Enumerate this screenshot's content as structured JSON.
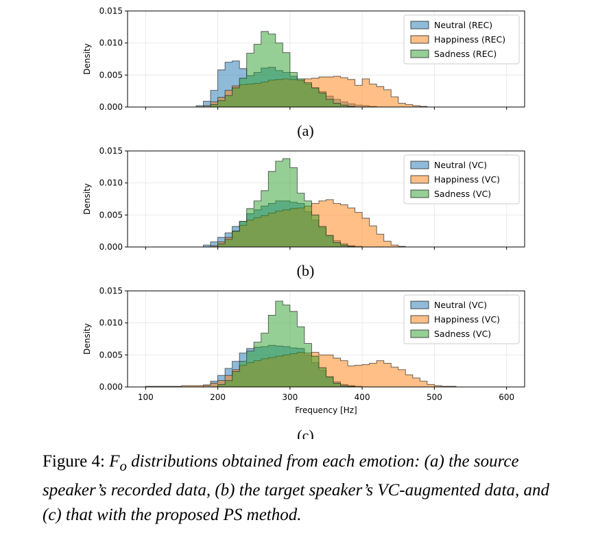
{
  "chart_data": [
    {
      "type": "histogram",
      "panel_label": "(a)",
      "xlabel": "",
      "ylabel": "Density",
      "xlim": [
        75,
        625
      ],
      "ylim": [
        0,
        0.015
      ],
      "xticks": [
        100,
        200,
        300,
        400,
        500,
        600
      ],
      "yticks": [
        "0.000",
        "0.005",
        "0.010",
        "0.015"
      ],
      "show_xticklabels": false,
      "grid": true,
      "legend_position": "upper-right",
      "bin_edges": [
        100,
        110,
        120,
        130,
        140,
        150,
        160,
        170,
        180,
        190,
        200,
        210,
        220,
        230,
        240,
        250,
        260,
        270,
        280,
        290,
        300,
        310,
        320,
        330,
        340,
        350,
        360,
        370,
        380,
        390,
        400,
        410,
        420,
        430,
        440,
        450,
        460,
        470,
        480,
        490,
        500,
        510,
        520,
        530,
        540,
        550,
        560,
        570,
        580,
        590,
        600
      ],
      "series": [
        {
          "name": "Neutral (REC)",
          "color": "#1f77b4",
          "values": [
            0,
            0,
            0,
            0,
            0,
            0,
            0,
            0.0002,
            0.0009,
            0.0026,
            0.0058,
            0.007,
            0.0072,
            0.006,
            0.0049,
            0.0054,
            0.0061,
            0.0062,
            0.0057,
            0.0054,
            0.0048,
            0.0042,
            0.0036,
            0.003,
            0.0024,
            0.0017,
            0.0012,
            0.0008,
            0.0005,
            0.0003,
            0.0002,
            0.0001,
            0,
            0,
            0,
            0,
            0,
            0,
            0,
            0,
            0,
            0,
            0,
            0,
            0,
            0,
            0,
            0,
            0,
            0
          ]
        },
        {
          "name": "Happiness (REC)",
          "color": "#ff7f0e",
          "values": [
            0,
            0,
            0,
            0,
            0,
            0,
            0,
            0,
            0.0002,
            0.0008,
            0.0015,
            0.0026,
            0.0033,
            0.0035,
            0.0036,
            0.0037,
            0.0039,
            0.0042,
            0.0043,
            0.0044,
            0.0043,
            0.0042,
            0.0044,
            0.0045,
            0.0047,
            0.0047,
            0.0048,
            0.0046,
            0.0043,
            0.0034,
            0.0044,
            0.0036,
            0.0032,
            0.0027,
            0.0016,
            0.0006,
            0.0004,
            0.0002,
            0.0001,
            0,
            0,
            0,
            0,
            0,
            0,
            0,
            0,
            0,
            0,
            0
          ]
        },
        {
          "name": "Sadness (REC)",
          "color": "#2ca02c",
          "values": [
            0,
            0,
            0,
            0,
            0,
            0,
            0,
            0,
            0,
            0.0004,
            0.001,
            0.0018,
            0.003,
            0.0045,
            0.0084,
            0.0098,
            0.0118,
            0.0114,
            0.01,
            0.0085,
            0.0054,
            0.0044,
            0.0038,
            0.003,
            0.0022,
            0.0012,
            0.0006,
            0.0003,
            0.0001,
            0,
            0,
            0,
            0,
            0,
            0,
            0,
            0,
            0,
            0,
            0,
            0,
            0,
            0,
            0,
            0,
            0,
            0,
            0,
            0,
            0
          ]
        }
      ]
    },
    {
      "type": "histogram",
      "panel_label": "(b)",
      "xlabel": "",
      "ylabel": "Density",
      "xlim": [
        75,
        625
      ],
      "ylim": [
        0,
        0.015
      ],
      "xticks": [
        100,
        200,
        300,
        400,
        500,
        600
      ],
      "yticks": [
        "0.000",
        "0.005",
        "0.010",
        "0.015"
      ],
      "show_xticklabels": false,
      "grid": true,
      "legend_position": "upper-right",
      "bin_edges": [
        100,
        110,
        120,
        130,
        140,
        150,
        160,
        170,
        180,
        190,
        200,
        210,
        220,
        230,
        240,
        250,
        260,
        270,
        280,
        290,
        300,
        310,
        320,
        330,
        340,
        350,
        360,
        370,
        380,
        390,
        400,
        410,
        420,
        430,
        440,
        450,
        460,
        470,
        480,
        490,
        500,
        510,
        520,
        530,
        540,
        550,
        560,
        570,
        580,
        590,
        600
      ],
      "series": [
        {
          "name": "Neutral (VC)",
          "color": "#1f77b4",
          "values": [
            0,
            0,
            0,
            0,
            0,
            0,
            0,
            0,
            0.0003,
            0.0008,
            0.0015,
            0.0022,
            0.0032,
            0.004,
            0.0052,
            0.0058,
            0.0064,
            0.0068,
            0.0072,
            0.0072,
            0.007,
            0.0068,
            0.0055,
            0.0042,
            0.003,
            0.0018,
            0.001,
            0.0005,
            0.0002,
            0.0001,
            0,
            0,
            0,
            0,
            0,
            0,
            0,
            0,
            0,
            0,
            0,
            0,
            0,
            0,
            0,
            0,
            0,
            0,
            0,
            0
          ]
        },
        {
          "name": "Happiness (VC)",
          "color": "#ff7f0e",
          "values": [
            0,
            0,
            0,
            0,
            0,
            0,
            0,
            0,
            0,
            0.0002,
            0.0008,
            0.0015,
            0.0024,
            0.0034,
            0.0042,
            0.0046,
            0.0049,
            0.0053,
            0.0056,
            0.0058,
            0.006,
            0.0061,
            0.0064,
            0.0068,
            0.0072,
            0.0074,
            0.0068,
            0.0066,
            0.0061,
            0.0054,
            0.0045,
            0.0033,
            0.002,
            0.0009,
            0.0003,
            0.0001,
            0,
            0,
            0,
            0,
            0,
            0,
            0,
            0,
            0,
            0,
            0,
            0,
            0,
            0
          ]
        },
        {
          "name": "Sadness (VC)",
          "color": "#2ca02c",
          "values": [
            0,
            0,
            0,
            0,
            0,
            0,
            0,
            0,
            0,
            0,
            0.0005,
            0.0012,
            0.0025,
            0.004,
            0.006,
            0.0072,
            0.0088,
            0.0118,
            0.0134,
            0.0138,
            0.0124,
            0.0084,
            0.0072,
            0.005,
            0.0032,
            0.0018,
            0.0007,
            0.0003,
            0.0001,
            0,
            0,
            0,
            0,
            0,
            0,
            0,
            0,
            0,
            0,
            0,
            0,
            0,
            0,
            0,
            0,
            0,
            0,
            0,
            0,
            0
          ]
        }
      ]
    },
    {
      "type": "histogram",
      "panel_label": "(c)",
      "xlabel": "Frequency [Hz]",
      "ylabel": "Density",
      "xlim": [
        75,
        625
      ],
      "ylim": [
        0,
        0.015
      ],
      "xticks": [
        100,
        200,
        300,
        400,
        500,
        600
      ],
      "yticks": [
        "0.000",
        "0.005",
        "0.010",
        "0.015"
      ],
      "show_xticklabels": true,
      "grid": true,
      "legend_position": "upper-right",
      "bin_edges": [
        100,
        110,
        120,
        130,
        140,
        150,
        160,
        170,
        180,
        190,
        200,
        210,
        220,
        230,
        240,
        250,
        260,
        270,
        280,
        290,
        300,
        310,
        320,
        330,
        340,
        350,
        360,
        370,
        380,
        390,
        400,
        410,
        420,
        430,
        440,
        450,
        460,
        470,
        480,
        490,
        500,
        510,
        520,
        530,
        540,
        550,
        560,
        570,
        580,
        590,
        600
      ],
      "series": [
        {
          "name": "Neutral (VC)",
          "color": "#1f77b4",
          "values": [
            0,
            0,
            0,
            0,
            0,
            0,
            0,
            0,
            0.0003,
            0.0009,
            0.0018,
            0.0029,
            0.004,
            0.0053,
            0.006,
            0.0062,
            0.0063,
            0.0065,
            0.0064,
            0.0063,
            0.0061,
            0.006,
            0.005,
            0.0038,
            0.0026,
            0.0015,
            0.0008,
            0.0004,
            0.0002,
            0.0001,
            0,
            0,
            0,
            0,
            0,
            0,
            0,
            0,
            0,
            0,
            0,
            0,
            0,
            0,
            0,
            0,
            0,
            0,
            0,
            0
          ]
        },
        {
          "name": "Happiness (VC)",
          "color": "#ff7f0e",
          "values": [
            0.0001,
            0.0001,
            0.0001,
            0.0001,
            0.0001,
            0.0002,
            0.0002,
            0.0002,
            0.0003,
            0.0006,
            0.001,
            0.0018,
            0.0027,
            0.0034,
            0.0038,
            0.0041,
            0.0044,
            0.0046,
            0.0048,
            0.005,
            0.0052,
            0.0054,
            0.0053,
            0.0054,
            0.005,
            0.005,
            0.0045,
            0.0041,
            0.0033,
            0.0034,
            0.0035,
            0.0037,
            0.0041,
            0.0037,
            0.0031,
            0.0027,
            0.0019,
            0.0014,
            0.0009,
            0.0004,
            0.0002,
            0.0001,
            0.0001,
            0,
            0,
            0,
            0,
            0,
            0,
            0
          ]
        },
        {
          "name": "Sadness (VC)",
          "color": "#2ca02c",
          "values": [
            0,
            0,
            0,
            0,
            0,
            0,
            0,
            0,
            0,
            0,
            0.0004,
            0.001,
            0.0024,
            0.004,
            0.0056,
            0.007,
            0.0084,
            0.0112,
            0.0134,
            0.0128,
            0.0118,
            0.0094,
            0.0068,
            0.0048,
            0.003,
            0.0016,
            0.0006,
            0.0002,
            0.0001,
            0,
            0,
            0,
            0,
            0,
            0,
            0,
            0,
            0,
            0,
            0,
            0,
            0,
            0,
            0,
            0,
            0,
            0,
            0,
            0,
            0
          ]
        }
      ]
    }
  ],
  "caption": {
    "prefix": "Figure 4: ",
    "symbol": "F",
    "subscript": "o",
    "body": " distributions obtained from each emotion: (a) the source speaker’s recorded data, (b) the target speaker’s VC-augmented data, and (c) that with the proposed PS method."
  }
}
